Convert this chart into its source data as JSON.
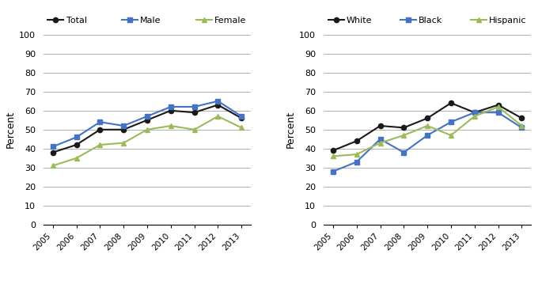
{
  "years": [
    2005,
    2006,
    2007,
    2008,
    2009,
    2010,
    2011,
    2012,
    2013
  ],
  "left": {
    "title_legend": [
      "Total",
      "Male",
      "Female"
    ],
    "Total": [
      38,
      42,
      50,
      50,
      55,
      60,
      59,
      63,
      56
    ],
    "Male": [
      41,
      46,
      54,
      52,
      57,
      62,
      62,
      65,
      57
    ],
    "Female": [
      31,
      35,
      42,
      43,
      50,
      52,
      50,
      57,
      51
    ]
  },
  "right": {
    "title_legend": [
      "White",
      "Black",
      "Hispanic"
    ],
    "White": [
      39,
      44,
      52,
      51,
      56,
      64,
      59,
      63,
      56
    ],
    "Black": [
      28,
      33,
      45,
      38,
      47,
      54,
      59,
      59,
      51
    ],
    "Hispanic": [
      36,
      37,
      43,
      47,
      52,
      47,
      57,
      62,
      52
    ]
  },
  "colors": {
    "Total": "#1a1a1a",
    "Male": "#4472c4",
    "Female": "#9bbb59",
    "White": "#1a1a1a",
    "Black": "#4472c4",
    "Hispanic": "#9bbb59"
  },
  "markers": {
    "Total": "o",
    "Male": "s",
    "Female": "^",
    "White": "o",
    "Black": "s",
    "Hispanic": "^"
  },
  "ylim": [
    0,
    100
  ],
  "yticks": [
    0,
    10,
    20,
    30,
    40,
    50,
    60,
    70,
    80,
    90,
    100
  ],
  "ylabel": "Percent",
  "background_color": "#ffffff",
  "grid_color": "#b0b0b0"
}
